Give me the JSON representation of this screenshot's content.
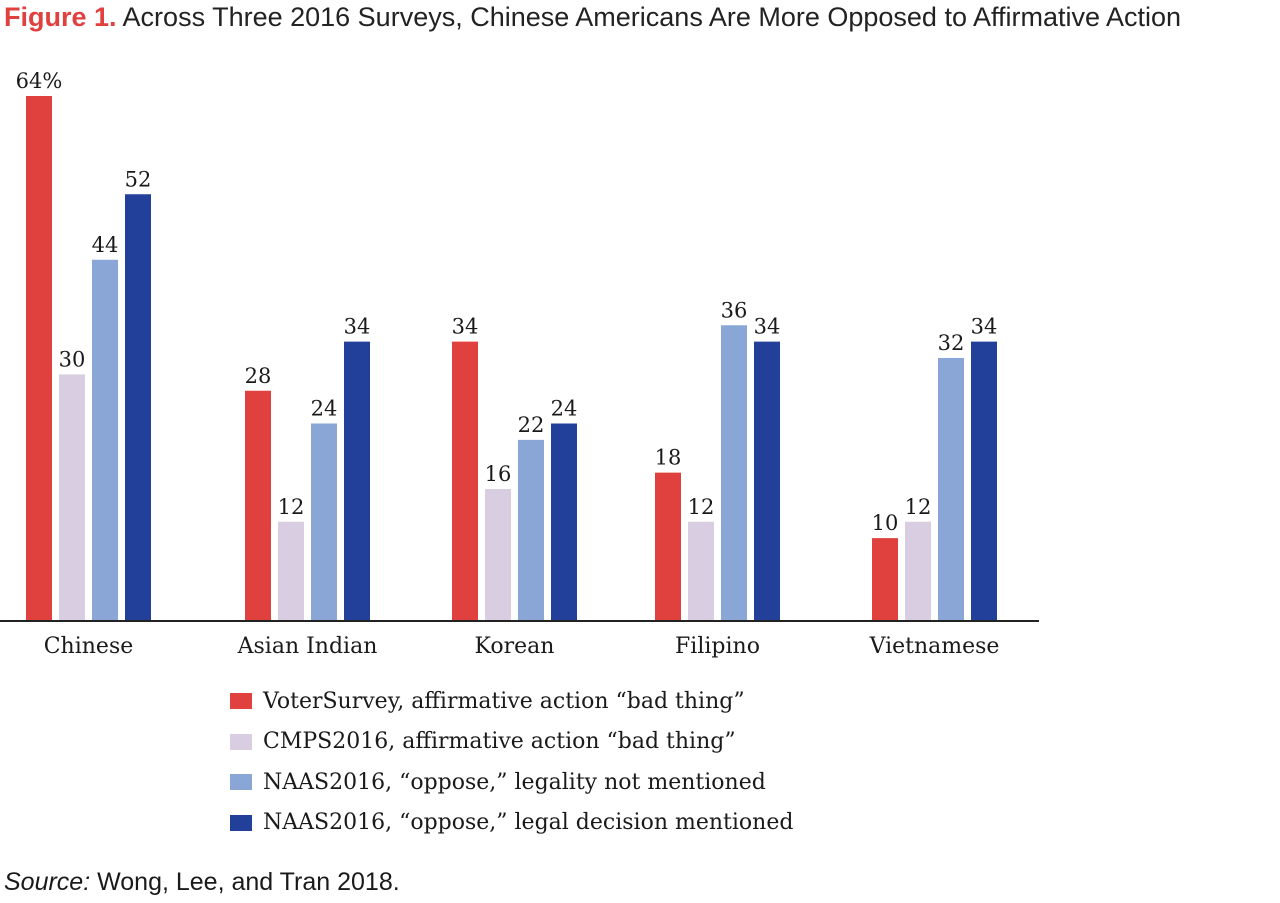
{
  "title": {
    "figure_label": "Figure 1.",
    "text": "Across Three 2016 Surveys, Chinese Americans Are More Opposed to Affirmative Action"
  },
  "source": {
    "label": "Source:",
    "text": "Wong, Lee, and Tran 2018."
  },
  "chart_data": {
    "type": "bar",
    "title": "Across Three 2016 Surveys, Chinese Americans Are More Opposed to Affirmative Action",
    "xlabel": "",
    "ylabel": "",
    "ylim": [
      0,
      64
    ],
    "grid": false,
    "legend_position": "bottom",
    "value_unit_first_label": "64%",
    "categories": [
      "Chinese",
      "Asian Indian",
      "Korean",
      "Filipino",
      "Vietnamese"
    ],
    "series": [
      {
        "name": "VoterSurvey, affirmative action “bad thing”",
        "color": "#e0413f",
        "values": [
          64,
          28,
          34,
          18,
          10
        ]
      },
      {
        "name": "CMPS2016, affirmative action “bad thing”",
        "color": "#d9cde1",
        "values": [
          30,
          12,
          16,
          12,
          12
        ]
      },
      {
        "name": "NAAS2016, “oppose,” legality not mentioned",
        "color": "#8aa6d6",
        "values": [
          44,
          24,
          22,
          36,
          32
        ]
      },
      {
        "name": "NAAS2016, “oppose,” legal decision mentioned",
        "color": "#223f99",
        "values": [
          52,
          34,
          24,
          34,
          34
        ]
      }
    ]
  }
}
